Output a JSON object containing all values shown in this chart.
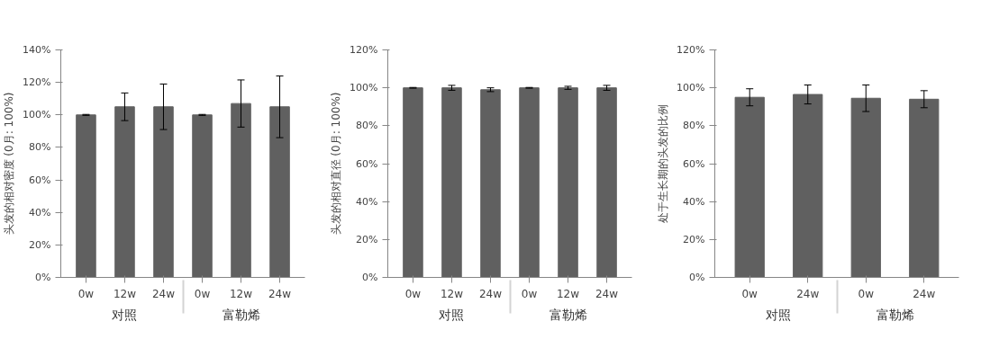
{
  "chart_data": [
    {
      "type": "bar",
      "ylabel": "头发的相对密度 (0月: 100%)",
      "categories": [
        "0w",
        "12w",
        "24w",
        "0w",
        "12w",
        "24w"
      ],
      "annotations": [
        "对照",
        "富勒烯"
      ],
      "color": "#606060",
      "values": [
        100,
        105,
        105,
        100,
        107,
        105
      ],
      "errors": [
        0.3,
        8.5,
        14,
        0.3,
        14.5,
        19
      ],
      "ylim": [
        0,
        140
      ],
      "yticks": [
        {
          "value": 0,
          "label": "0%"
        },
        {
          "value": 20,
          "label": "20%"
        },
        {
          "value": 40,
          "label": "40%"
        },
        {
          "value": 60,
          "label": "60%"
        },
        {
          "value": 80,
          "label": "80%"
        },
        {
          "value": 100,
          "label": "100%"
        },
        {
          "value": 120,
          "label": "120%"
        },
        {
          "value": 140,
          "label": "140%"
        }
      ],
      "grid": false
    },
    {
      "type": "bar",
      "ylabel": "头发的相对直径 (0月: 100%)",
      "categories": [
        "0w",
        "12w",
        "24w",
        "0w",
        "12w",
        "24w"
      ],
      "annotations": [
        "对照",
        "富勒烯"
      ],
      "color": "#606060",
      "values": [
        100,
        100,
        99,
        100,
        100,
        100
      ],
      "errors": [
        0.2,
        1.3,
        1,
        0.2,
        0.8,
        1.3
      ],
      "ylim": [
        0,
        120
      ],
      "yticks": [
        {
          "value": 0,
          "label": "0%"
        },
        {
          "value": 20,
          "label": "20%"
        },
        {
          "value": 40,
          "label": "40%"
        },
        {
          "value": 60,
          "label": "60%"
        },
        {
          "value": 80,
          "label": "80%"
        },
        {
          "value": 100,
          "label": "100%"
        },
        {
          "value": 120,
          "label": "120%"
        }
      ],
      "grid": false
    },
    {
      "type": "bar",
      "ylabel": "处于生长期的头发的比例",
      "categories": [
        "0w",
        "24w",
        "0w",
        "24w"
      ],
      "annotations": [
        "对照",
        "富勒烯"
      ],
      "color": "#606060",
      "values": [
        95,
        96.5,
        94.5,
        94
      ],
      "errors": [
        4.5,
        5,
        7,
        4.5
      ],
      "ylim": [
        0,
        120
      ],
      "yticks": [
        {
          "value": 0,
          "label": "0%"
        },
        {
          "value": 20,
          "label": "20%"
        },
        {
          "value": 40,
          "label": "40%"
        },
        {
          "value": 60,
          "label": "60%"
        },
        {
          "value": 80,
          "label": "80%"
        },
        {
          "value": 100,
          "label": "100%"
        },
        {
          "value": 120,
          "label": "120%"
        }
      ],
      "grid": false
    }
  ]
}
